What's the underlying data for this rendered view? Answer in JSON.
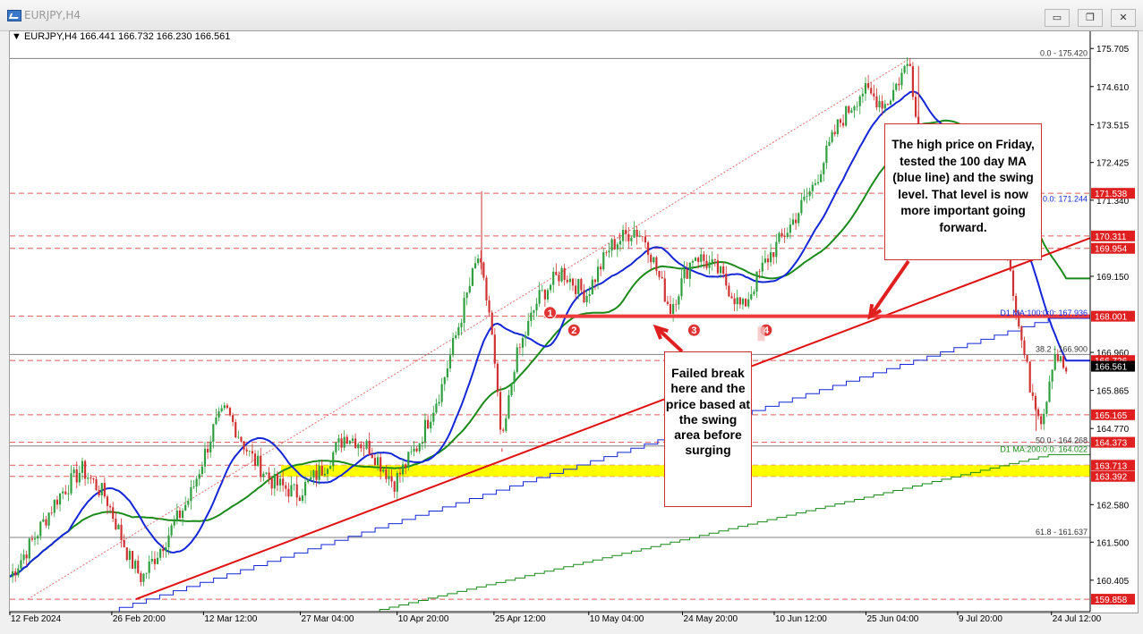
{
  "window": {
    "title": "EURJPY,H4",
    "minimize_label": "▭",
    "restore_label": "❐",
    "close_label": "✕"
  },
  "info": {
    "symbol": "EURJPY,H4",
    "open": "166.441",
    "high": "166.732",
    "low": "166.230",
    "close": "166.561"
  },
  "colors": {
    "candle_up": "#2e9e3e",
    "candle_down": "#d03030",
    "ma100": "#1426d8",
    "ma200": "#1a8a1a",
    "trend": "#e01010",
    "swing_line": "#ef3b3b",
    "highlight_zone": "#ffff00"
  },
  "chart_data": {
    "type": "candlestick",
    "symbol": "EURJPY",
    "timeframe": "H4",
    "ylim": [
      159.5,
      176.2
    ],
    "x_ticks": [
      "12 Feb 2024",
      "26 Feb 20:00",
      "12 Mar 12:00",
      "27 Mar 04:00",
      "10 Apr 20:00",
      "25 Apr 12:00",
      "10 May 04:00",
      "24 May 20:00",
      "10 Jun 12:00",
      "25 Jun 04:00",
      "9 Jul 20:00",
      "24 Jul 12:00"
    ],
    "y_ticks": [
      175.705,
      174.61,
      173.515,
      172.425,
      171.34,
      169.15,
      166.96,
      165.865,
      164.77,
      162.58,
      161.5,
      160.405
    ],
    "price_path": [
      [
        0,
        160.5
      ],
      [
        2,
        161.6
      ],
      [
        4,
        162.8
      ],
      [
        6,
        163.6
      ],
      [
        8,
        162.8
      ],
      [
        10,
        161.0
      ],
      [
        11,
        160.45
      ],
      [
        13,
        161.6
      ],
      [
        15,
        162.8
      ],
      [
        17,
        164.8
      ],
      [
        18,
        165.3
      ],
      [
        20,
        164.0
      ],
      [
        22,
        163.2
      ],
      [
        24,
        162.9
      ],
      [
        26,
        163.6
      ],
      [
        28,
        164.6
      ],
      [
        30,
        164.2
      ],
      [
        32,
        163.2
      ],
      [
        34,
        164.3
      ],
      [
        36,
        166.0
      ],
      [
        38,
        168.5
      ],
      [
        39,
        169.7
      ],
      [
        40,
        168.0
      ],
      [
        41,
        164.2
      ],
      [
        42,
        166.6
      ],
      [
        44,
        168.5
      ],
      [
        46,
        169.3
      ],
      [
        48,
        168.6
      ],
      [
        50,
        170.0
      ],
      [
        52,
        170.5
      ],
      [
        53,
        170.2
      ],
      [
        55,
        168.2
      ],
      [
        57,
        169.8
      ],
      [
        59,
        169.3
      ],
      [
        61,
        168.2
      ],
      [
        63,
        169.6
      ],
      [
        65,
        170.6
      ],
      [
        67,
        171.8
      ],
      [
        69,
        173.5
      ],
      [
        71,
        174.5
      ],
      [
        73,
        174.1
      ],
      [
        75,
        175.42
      ],
      [
        76,
        171.8
      ],
      [
        78,
        172.5
      ],
      [
        80,
        170.8
      ],
      [
        82,
        171.4
      ],
      [
        83,
        170.3
      ],
      [
        84,
        167.8
      ],
      [
        85,
        166.0
      ],
      [
        86,
        165.0
      ],
      [
        87,
        167.0
      ],
      [
        88,
        166.4
      ]
    ],
    "series": [
      {
        "name": "D1 MA:100:0:0",
        "value": 167.936
      },
      {
        "name": "D1 MA:200:0:0",
        "value": 164.022
      }
    ],
    "horizontal_levels": [
      {
        "label": "0.0 - 175.420",
        "value": 175.42
      },
      {
        "label": "38.2 - 166.900",
        "value": 166.9
      },
      {
        "label": "50.0 - 164.268",
        "value": 164.268
      },
      {
        "label": "61.8 - 161.637",
        "value": 161.637
      }
    ],
    "price_tags": [
      {
        "text": "171.538",
        "value": 171.538
      },
      {
        "text": "170.311",
        "value": 170.311
      },
      {
        "text": "169.954",
        "value": 169.954
      },
      {
        "text": "168.001",
        "value": 168.001
      },
      {
        "text": "166.726",
        "value": 166.726
      },
      {
        "text": "165.165",
        "value": 165.165
      },
      {
        "text": "164.373",
        "value": 164.373
      },
      {
        "text": "163.713",
        "value": 163.713
      },
      {
        "text": "163.392",
        "value": 163.392
      },
      {
        "text": "159.858",
        "value": 159.858
      }
    ],
    "current_price": {
      "text": "166.561",
      "value": 166.561
    },
    "swing_level": 168.001,
    "highlight_zone": [
      163.392,
      163.713
    ],
    "markers": [
      {
        "label": "1",
        "t": 45,
        "value": 168.1
      },
      {
        "label": "2",
        "t": 47,
        "value": 167.6
      },
      {
        "label": "3",
        "t": 57,
        "value": 167.6
      },
      {
        "label": "4",
        "t": 63,
        "value": 167.6
      }
    ],
    "overlay_labels": [
      "0.0: 171.244"
    ]
  },
  "annotations": {
    "box1": "The high price on Friday, tested the 100 day MA (blue line) and the swing level. That level is now more important going forward.",
    "box2": "Failed break here and the price based at the swing area before surging"
  }
}
